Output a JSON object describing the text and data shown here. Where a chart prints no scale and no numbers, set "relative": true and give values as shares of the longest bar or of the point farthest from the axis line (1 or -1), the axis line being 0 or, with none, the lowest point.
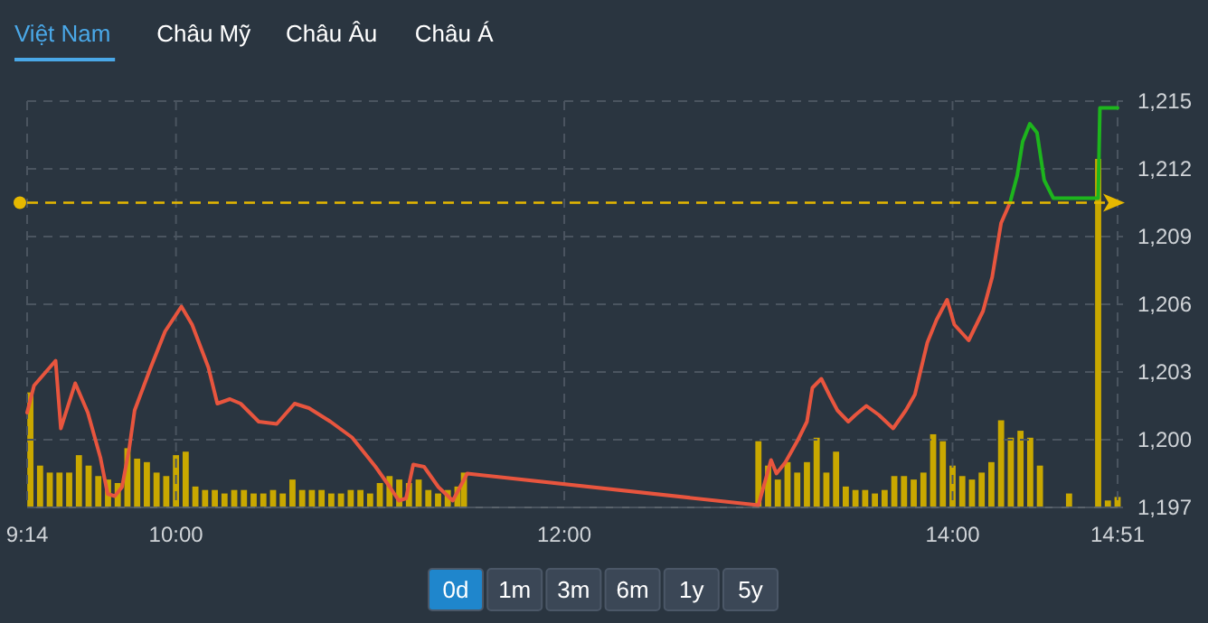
{
  "chart_data": [
    {
      "type": "line",
      "xlim": [
        9.2333,
        14.85
      ],
      "ylim": [
        1197,
        1215
      ],
      "xticks": [
        {
          "value": 9.2333,
          "label": "9:14"
        },
        {
          "value": 10,
          "label": "10:00"
        },
        {
          "value": 12,
          "label": "12:00"
        },
        {
          "value": 14,
          "label": "14:00"
        },
        {
          "value": 14.85,
          "label": "14:51"
        }
      ],
      "yticks": [
        {
          "value": 1197,
          "label": "1,197"
        },
        {
          "value": 1200,
          "label": "1,200"
        },
        {
          "value": 1203,
          "label": "1,203"
        },
        {
          "value": 1206,
          "label": "1,206"
        },
        {
          "value": 1209,
          "label": "1,209"
        },
        {
          "value": 1212,
          "label": "1,212"
        },
        {
          "value": 1215,
          "label": "1,215"
        }
      ],
      "grid": true,
      "ref_lines": [
        {
          "axis": "y",
          "value": 1210.5,
          "color": "#e6b800",
          "line_style": "dashed"
        }
      ],
      "series": [
        {
          "color": "#e8553e",
          "x": [
            9.2333,
            9.269,
            9.38,
            9.407,
            9.481,
            9.546,
            9.611,
            9.648,
            9.685,
            9.722,
            9.759,
            9.787,
            9.87,
            9.944,
            10.028,
            10.083,
            10.167,
            10.213,
            10.278,
            10.333,
            10.426,
            10.519,
            10.611,
            10.685,
            10.796,
            10.907,
            11.028,
            11.102,
            11.148,
            11.185,
            11.222,
            11.278,
            11.352,
            11.426,
            11.5,
            13.0,
            13.065,
            13.093,
            13.139,
            13.204,
            13.25,
            13.278,
            13.324,
            13.37,
            13.407,
            13.463,
            13.5,
            13.556,
            13.62,
            13.694,
            13.759,
            13.806,
            13.87,
            13.917,
            13.972,
            14.009,
            14.083,
            14.157,
            14.204,
            14.25,
            14.296
          ],
          "values": [
            1201.2,
            1202.4,
            1203.5,
            1200.5,
            1202.5,
            1201.2,
            1199.2,
            1197.6,
            1197.5,
            1197.9,
            1199.6,
            1201.3,
            1203.2,
            1204.8,
            1205.9,
            1205.1,
            1203.2,
            1201.6,
            1201.8,
            1201.6,
            1200.8,
            1200.7,
            1201.6,
            1201.4,
            1200.8,
            1200.1,
            1198.8,
            1197.9,
            1197.3,
            1197.4,
            1198.9,
            1198.8,
            1197.9,
            1197.3,
            1198.5,
            1197.1,
            1199.1,
            1198.5,
            1199.0,
            1200.0,
            1200.8,
            1202.3,
            1202.7,
            1201.9,
            1201.3,
            1200.8,
            1201.1,
            1201.5,
            1201.1,
            1200.5,
            1201.3,
            1202.0,
            1204.3,
            1205.3,
            1206.2,
            1205.1,
            1204.4,
            1205.7,
            1207.2,
            1209.6,
            1210.5
          ]
        },
        {
          "color": "#1db51d",
          "x": [
            14.296,
            14.333,
            14.361,
            14.398,
            14.435,
            14.472,
            14.519,
            14.75,
            14.759,
            14.85
          ],
          "values": [
            1210.5,
            1211.7,
            1213.2,
            1214.0,
            1213.6,
            1211.5,
            1210.7,
            1210.7,
            1214.7,
            1214.7
          ]
        }
      ]
    },
    {
      "type": "bar",
      "relative": true,
      "xlim": [
        9.2333,
        14.85
      ],
      "color": "#c9a800",
      "x": [
        9.25,
        9.3,
        9.35,
        9.4,
        9.45,
        9.5,
        9.55,
        9.6,
        9.65,
        9.7,
        9.75,
        9.8,
        9.85,
        9.9,
        9.95,
        10.0,
        10.05,
        10.1,
        10.15,
        10.2,
        10.25,
        10.3,
        10.35,
        10.4,
        10.45,
        10.5,
        10.55,
        10.6,
        10.65,
        10.7,
        10.75,
        10.8,
        10.85,
        10.9,
        10.95,
        11.0,
        11.05,
        11.1,
        11.15,
        11.2,
        11.25,
        11.3,
        11.35,
        11.4,
        11.45,
        11.4833,
        13.0,
        13.05,
        13.1,
        13.15,
        13.2,
        13.25,
        13.3,
        13.35,
        13.4,
        13.45,
        13.5,
        13.55,
        13.6,
        13.65,
        13.7,
        13.75,
        13.8,
        13.85,
        13.9,
        13.95,
        14.0,
        14.05,
        14.1,
        14.15,
        14.2,
        14.25,
        14.3,
        14.35,
        14.4,
        14.45,
        14.6,
        14.75,
        14.8,
        14.85
      ],
      "values": [
        0.33,
        0.12,
        0.1,
        0.1,
        0.1,
        0.15,
        0.12,
        0.09,
        0.08,
        0.07,
        0.17,
        0.14,
        0.13,
        0.1,
        0.09,
        0.15,
        0.16,
        0.06,
        0.05,
        0.05,
        0.04,
        0.05,
        0.05,
        0.04,
        0.04,
        0.05,
        0.04,
        0.08,
        0.05,
        0.05,
        0.05,
        0.04,
        0.04,
        0.05,
        0.05,
        0.04,
        0.07,
        0.09,
        0.08,
        0.07,
        0.08,
        0.05,
        0.04,
        0.05,
        0.06,
        0.1,
        0.19,
        0.12,
        0.08,
        0.13,
        0.1,
        0.13,
        0.2,
        0.1,
        0.16,
        0.06,
        0.05,
        0.05,
        0.04,
        0.05,
        0.09,
        0.09,
        0.08,
        0.1,
        0.21,
        0.19,
        0.12,
        0.09,
        0.08,
        0.1,
        0.13,
        0.25,
        0.2,
        0.22,
        0.2,
        0.12,
        0.04,
        1,
        0.02,
        0.03
      ]
    },
    {
      "type": "other",
      "annotations": [
        "Việt Nam",
        "Châu Mỹ",
        "Châu Âu",
        "Châu Á"
      ]
    },
    {
      "type": "other",
      "annotations": [
        "0d",
        "1m",
        "3m",
        "6m",
        "1y",
        "5y"
      ]
    }
  ]
}
